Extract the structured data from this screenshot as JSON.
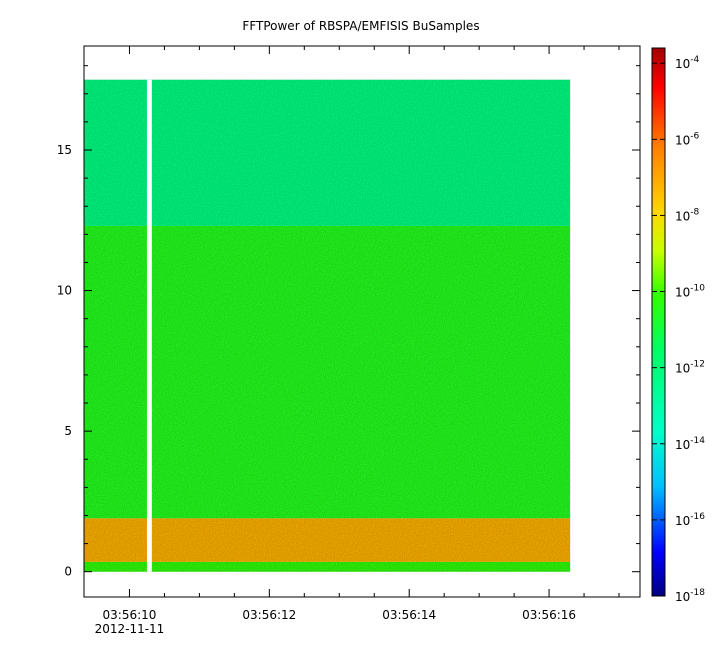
{
  "chart_data": {
    "type": "heatmap",
    "title": "FFTPower of RBSPA/EMFISIS  BuSamples",
    "xlabel": "",
    "ylabel": "",
    "x_tick_labels": [
      "03:56:10",
      "03:56:12",
      "03:56:14",
      "03:56:16"
    ],
    "x_tick_values": [
      10,
      12,
      14,
      16
    ],
    "x_date_label": "2012-11-11",
    "x_range": [
      9.35,
      17.3
    ],
    "y_tick_labels": [
      "0",
      "5",
      "10",
      "15"
    ],
    "y_tick_values": [
      0,
      5,
      10,
      15
    ],
    "y_range": [
      -0.9,
      18.7
    ],
    "data_extent": {
      "x": [
        9.35,
        16.3
      ],
      "y": [
        0,
        17.5
      ]
    },
    "data_gap": {
      "x": [
        10.25,
        10.32
      ]
    },
    "colorbar": {
      "scale": "log",
      "range_exponent": [
        -18,
        -3.6
      ],
      "tick_exponents": [
        -4,
        -6,
        -8,
        -10,
        -12,
        -14,
        -16,
        -18
      ],
      "tick_base": "10",
      "colormap": [
        "#00007f",
        "#0000ff",
        "#00c0ff",
        "#00ffc8",
        "#00ff64",
        "#32ff00",
        "#c8ff00",
        "#ffd700",
        "#ff7f00",
        "#ff0000",
        "#a00000"
      ]
    },
    "bands": [
      {
        "y": [
          0,
          0.35
        ],
        "level_exponent": -10.2
      },
      {
        "y": [
          0.35,
          1.9
        ],
        "level_exponent": -7.2
      },
      {
        "y": [
          1.9,
          12.3
        ],
        "level_exponent": -10.5
      },
      {
        "y": [
          12.3,
          17.5
        ],
        "level_exponent": -12.2
      }
    ],
    "grid": false,
    "legend": "none"
  }
}
